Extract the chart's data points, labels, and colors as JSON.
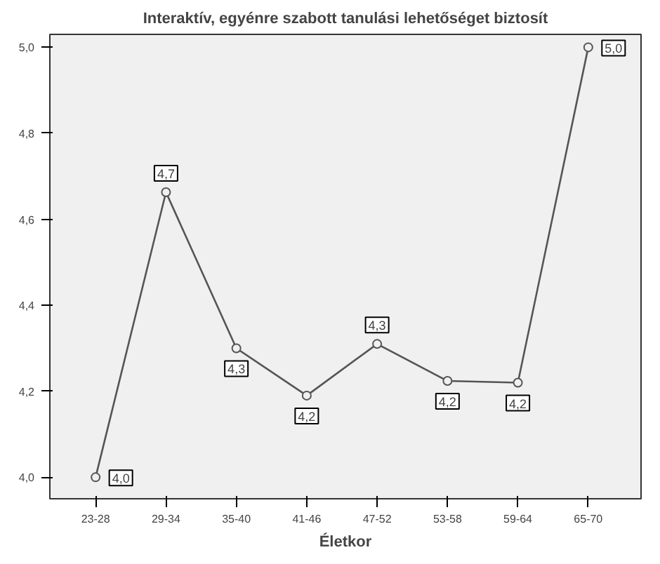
{
  "chart_data": {
    "type": "line",
    "title": "Interaktív, egyénre szabott tanulási lehetőséget biztosít",
    "xlabel": "Életkor",
    "categories": [
      "23-28",
      "29-34",
      "35-40",
      "41-46",
      "47-52",
      "53-58",
      "59-64",
      "65-70"
    ],
    "series": [
      {
        "color": "#555555",
        "values": [
          4.0,
          4.663,
          4.3,
          4.19,
          4.31,
          4.224,
          4.22,
          5.0
        ],
        "value_labels": [
          "4,0",
          "4,7",
          "4,3",
          "4,2",
          "4,3",
          "4,2",
          "4,2",
          "5,0"
        ]
      }
    ],
    "ylim": [
      3.95,
      5.03
    ],
    "yticks": [
      {
        "value": 4.0,
        "label": "4,0"
      },
      {
        "value": 4.2,
        "label": "4,2"
      },
      {
        "value": 4.4,
        "label": "4,4"
      },
      {
        "value": 4.6,
        "label": "4,6"
      },
      {
        "value": 4.8,
        "label": "4,8"
      },
      {
        "value": 5.0,
        "label": "5,0"
      }
    ],
    "marker": "circle",
    "line_style": "solid",
    "grid": false
  }
}
